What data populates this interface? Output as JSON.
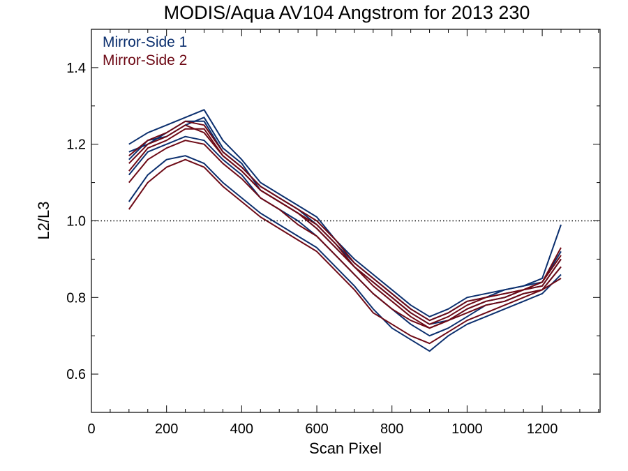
{
  "chart_data": {
    "type": "line",
    "title": "MODIS/Aqua AV104 Angstrom for 2013 230",
    "xlabel": "Scan Pixel",
    "ylabel": "L2/L3",
    "xlim": [
      0,
      1354
    ],
    "ylim": [
      0.5,
      1.5
    ],
    "xticks": [
      0,
      200,
      400,
      600,
      800,
      1000,
      1200
    ],
    "xtick_labels": [
      "0",
      "200",
      "400",
      "600",
      "800",
      "1000",
      "1200"
    ],
    "yticks": [
      0.6,
      0.8,
      1.0,
      1.2,
      1.4
    ],
    "ytick_labels": [
      "0.6",
      "0.8",
      "1.0",
      "1.2",
      "1.4"
    ],
    "reference_line": {
      "y": 1.0,
      "style": "dotted"
    },
    "grid": false,
    "legend_position": "top-left",
    "colors": {
      "Mirror-Side 1": "#0b2f6e",
      "Mirror-Side 2": "#6e0a16"
    },
    "x": [
      100,
      150,
      200,
      250,
      300,
      350,
      400,
      450,
      500,
      550,
      600,
      650,
      700,
      750,
      800,
      850,
      900,
      950,
      1000,
      1050,
      1100,
      1150,
      1200,
      1250
    ],
    "series": [
      {
        "name": "Mirror-Side 1",
        "values": [
          1.16,
          1.21,
          1.22,
          1.25,
          1.27,
          1.19,
          1.15,
          1.08,
          1.05,
          1.02,
          0.98,
          0.93,
          0.88,
          0.84,
          0.8,
          0.76,
          0.73,
          0.74,
          0.77,
          0.79,
          0.8,
          0.82,
          0.83,
          0.9
        ]
      },
      {
        "name": "Mirror-Side 1",
        "values": [
          1.05,
          1.12,
          1.16,
          1.17,
          1.15,
          1.1,
          1.06,
          1.02,
          0.99,
          0.96,
          0.93,
          0.88,
          0.83,
          0.77,
          0.72,
          0.69,
          0.66,
          0.7,
          0.73,
          0.75,
          0.77,
          0.79,
          0.81,
          0.86
        ]
      },
      {
        "name": "Mirror-Side 1",
        "values": [
          1.2,
          1.23,
          1.25,
          1.27,
          1.29,
          1.21,
          1.16,
          1.1,
          1.07,
          1.04,
          1.01,
          0.95,
          0.9,
          0.86,
          0.82,
          0.78,
          0.75,
          0.77,
          0.8,
          0.81,
          0.82,
          0.83,
          0.85,
          0.99
        ]
      },
      {
        "name": "Mirror-Side 1",
        "values": [
          1.12,
          1.18,
          1.2,
          1.22,
          1.21,
          1.16,
          1.12,
          1.06,
          1.03,
          1.0,
          0.96,
          0.91,
          0.86,
          0.81,
          0.77,
          0.73,
          0.7,
          0.72,
          0.75,
          0.78,
          0.79,
          0.81,
          0.82,
          0.88
        ]
      },
      {
        "name": "Mirror-Side 1",
        "values": [
          1.18,
          1.2,
          1.23,
          1.26,
          1.26,
          1.18,
          1.14,
          1.09,
          1.06,
          1.03,
          0.99,
          0.94,
          0.89,
          0.85,
          0.81,
          0.77,
          0.74,
          0.76,
          0.79,
          0.8,
          0.82,
          0.83,
          0.84,
          0.92
        ]
      },
      {
        "name": "Mirror-Side 2",
        "values": [
          1.03,
          1.1,
          1.14,
          1.16,
          1.14,
          1.09,
          1.05,
          1.01,
          0.98,
          0.95,
          0.92,
          0.87,
          0.82,
          0.76,
          0.73,
          0.7,
          0.68,
          0.71,
          0.74,
          0.76,
          0.78,
          0.8,
          0.82,
          0.85
        ]
      },
      {
        "name": "Mirror-Side 2",
        "values": [
          1.13,
          1.19,
          1.21,
          1.24,
          1.24,
          1.17,
          1.13,
          1.08,
          1.05,
          1.02,
          0.98,
          0.93,
          0.88,
          0.83,
          0.79,
          0.75,
          0.72,
          0.74,
          0.77,
          0.79,
          0.8,
          0.82,
          0.83,
          0.9
        ]
      },
      {
        "name": "Mirror-Side 2",
        "values": [
          1.17,
          1.21,
          1.23,
          1.26,
          1.25,
          1.18,
          1.14,
          1.09,
          1.06,
          1.03,
          1.0,
          0.95,
          0.89,
          0.85,
          0.81,
          0.77,
          0.74,
          0.76,
          0.79,
          0.8,
          0.81,
          0.82,
          0.84,
          0.93
        ]
      },
      {
        "name": "Mirror-Side 2",
        "values": [
          1.1,
          1.16,
          1.19,
          1.21,
          1.2,
          1.15,
          1.11,
          1.06,
          1.03,
          0.99,
          0.96,
          0.91,
          0.86,
          0.81,
          0.77,
          0.74,
          0.72,
          0.74,
          0.76,
          0.78,
          0.79,
          0.81,
          0.82,
          0.88
        ]
      },
      {
        "name": "Mirror-Side 2",
        "values": [
          1.15,
          1.2,
          1.22,
          1.25,
          1.23,
          1.17,
          1.13,
          1.08,
          1.05,
          1.02,
          0.99,
          0.94,
          0.88,
          0.84,
          0.8,
          0.76,
          0.73,
          0.75,
          0.78,
          0.8,
          0.81,
          0.82,
          0.84,
          0.91
        ]
      }
    ]
  },
  "legend": [
    {
      "label": "Mirror-Side 1",
      "color": "#0b2f6e"
    },
    {
      "label": "Mirror-Side 2",
      "color": "#6e0a16"
    }
  ]
}
